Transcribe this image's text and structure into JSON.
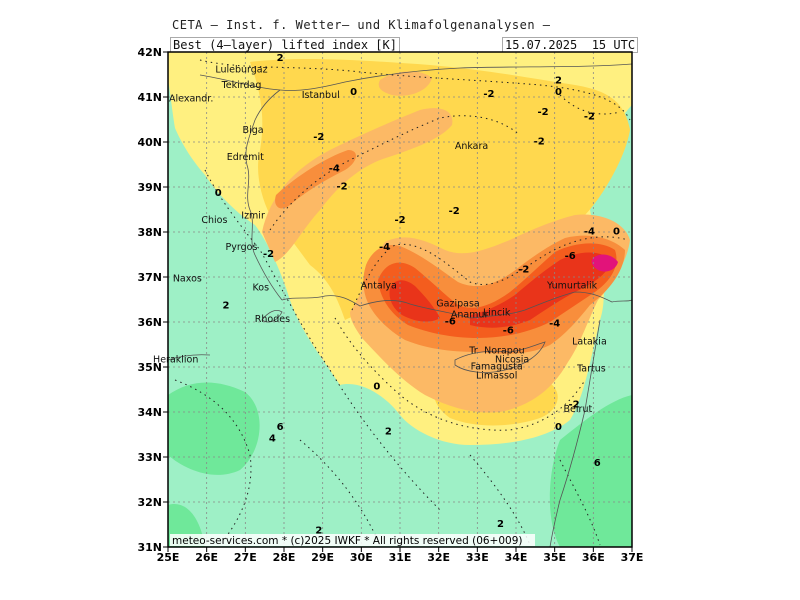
{
  "header": {
    "title": "CETA – Inst. f. Wetter– und Klimafolgenanalysen –",
    "subtitle": "Best (4–layer) lifted index [K]",
    "valid_time": "15.07.2025  15 UTC"
  },
  "map": {
    "lat_labels": [
      "42N",
      "41N",
      "40N",
      "39N",
      "38N",
      "37N",
      "36N",
      "35N",
      "34N",
      "33N",
      "32N",
      "31N"
    ],
    "lon_labels": [
      "25E",
      "26E",
      "27E",
      "28E",
      "29E",
      "30E",
      "31E",
      "32E",
      "33E",
      "34E",
      "35E",
      "36E",
      "37E"
    ],
    "lon_range": [
      25,
      37
    ],
    "lat_range": [
      31,
      42
    ],
    "footer": "meteo-services.com * (c)2025 IWKF * All rights reserved (06+009)",
    "cities": [
      {
        "name": "Luleburgaz",
        "lon": 26.9,
        "lat": 41.55
      },
      {
        "name": "Tekirdag",
        "lon": 26.9,
        "lat": 41.2
      },
      {
        "name": "Istanbul",
        "lon": 28.95,
        "lat": 40.98
      },
      {
        "name": "Alexandr.",
        "lon": 25.6,
        "lat": 40.9
      },
      {
        "name": "Biga",
        "lon": 27.2,
        "lat": 40.2
      },
      {
        "name": "Edremit",
        "lon": 27.0,
        "lat": 39.6
      },
      {
        "name": "Ankara",
        "lon": 32.85,
        "lat": 39.85
      },
      {
        "name": "Chios",
        "lon": 26.2,
        "lat": 38.2
      },
      {
        "name": "Izmir",
        "lon": 27.2,
        "lat": 38.3
      },
      {
        "name": "Pyrgos",
        "lon": 26.9,
        "lat": 37.6
      },
      {
        "name": "Naxos",
        "lon": 25.5,
        "lat": 36.9
      },
      {
        "name": "Kos",
        "lon": 27.4,
        "lat": 36.7
      },
      {
        "name": "Rhodes",
        "lon": 27.7,
        "lat": 36.0
      },
      {
        "name": "Antalya",
        "lon": 30.45,
        "lat": 36.75
      },
      {
        "name": "Gazipasa",
        "lon": 32.5,
        "lat": 36.35
      },
      {
        "name": "Anamur",
        "lon": 32.8,
        "lat": 36.1
      },
      {
        "name": "Lincik",
        "lon": 33.5,
        "lat": 36.15
      },
      {
        "name": "Yumurtalik",
        "lon": 35.45,
        "lat": 36.75
      },
      {
        "name": "Heraklion",
        "lon": 25.2,
        "lat": 35.1
      },
      {
        "name": "Nicosia",
        "lon": 33.9,
        "lat": 35.1
      },
      {
        "name": "Norapou",
        "lon": 33.7,
        "lat": 35.3
      },
      {
        "name": "Famagusta",
        "lon": 33.5,
        "lat": 34.95
      },
      {
        "name": "Limassol",
        "lon": 33.5,
        "lat": 34.75
      },
      {
        "name": "Latakia",
        "lon": 35.9,
        "lat": 35.5
      },
      {
        "name": "Tartus",
        "lon": 35.95,
        "lat": 34.9
      },
      {
        "name": "Beirut",
        "lon": 35.6,
        "lat": 34.0
      },
      {
        "name": "Tr",
        "lon": 32.9,
        "lat": 35.3
      }
    ],
    "contour_labels": [
      {
        "text": "2",
        "lon": 27.9,
        "lat": 41.8
      },
      {
        "text": "0",
        "lon": 29.8,
        "lat": 41.05
      },
      {
        "text": "-2",
        "lon": 28.9,
        "lat": 40.05
      },
      {
        "text": "-2",
        "lon": 33.3,
        "lat": 41.0
      },
      {
        "text": "2",
        "lon": 35.1,
        "lat": 41.3
      },
      {
        "text": "0",
        "lon": 35.1,
        "lat": 41.05
      },
      {
        "text": "-2",
        "lon": 34.7,
        "lat": 40.6
      },
      {
        "text": "-2",
        "lon": 35.9,
        "lat": 40.5
      },
      {
        "text": "-2",
        "lon": 34.6,
        "lat": 39.95
      },
      {
        "text": "-4",
        "lon": 29.3,
        "lat": 39.35
      },
      {
        "text": "-2",
        "lon": 29.5,
        "lat": 38.95
      },
      {
        "text": "0",
        "lon": 26.3,
        "lat": 38.8
      },
      {
        "text": "-2",
        "lon": 32.4,
        "lat": 38.4
      },
      {
        "text": "-2",
        "lon": 31.0,
        "lat": 38.2
      },
      {
        "text": "-2",
        "lon": 27.6,
        "lat": 37.45
      },
      {
        "text": "-4",
        "lon": 30.6,
        "lat": 37.6
      },
      {
        "text": "-2",
        "lon": 34.2,
        "lat": 37.1
      },
      {
        "text": "-6",
        "lon": 35.4,
        "lat": 37.4
      },
      {
        "text": "-4",
        "lon": 35.9,
        "lat": 37.95
      },
      {
        "text": "0",
        "lon": 36.6,
        "lat": 37.95
      },
      {
        "text": "-6",
        "lon": 32.3,
        "lat": 35.95
      },
      {
        "text": "-6",
        "lon": 33.8,
        "lat": 35.75
      },
      {
        "text": "-4",
        "lon": 35.0,
        "lat": 35.9
      },
      {
        "text": "2",
        "lon": 26.5,
        "lat": 36.3
      },
      {
        "text": "0",
        "lon": 30.4,
        "lat": 34.5
      },
      {
        "text": "-2",
        "lon": 35.5,
        "lat": 34.1
      },
      {
        "text": "0",
        "lon": 35.1,
        "lat": 33.6
      },
      {
        "text": "6",
        "lon": 27.9,
        "lat": 33.6
      },
      {
        "text": "4",
        "lon": 27.7,
        "lat": 33.35
      },
      {
        "text": "2",
        "lon": 30.7,
        "lat": 33.5
      },
      {
        "text": "6",
        "lon": 36.1,
        "lat": 32.8
      },
      {
        "text": "2",
        "lon": 28.9,
        "lat": 31.3
      },
      {
        "text": "2",
        "lon": 33.6,
        "lat": 31.45
      }
    ]
  },
  "colors": {
    "mint": "#9ef0c6",
    "green": "#6fe89a",
    "pale_yellow": "#fff080",
    "yellow": "#ffd84e",
    "light_orange": "#fcb965",
    "orange": "#f88e3c",
    "red_orange": "#f45d1e",
    "red": "#e9341a",
    "magenta": "#e2137a"
  }
}
